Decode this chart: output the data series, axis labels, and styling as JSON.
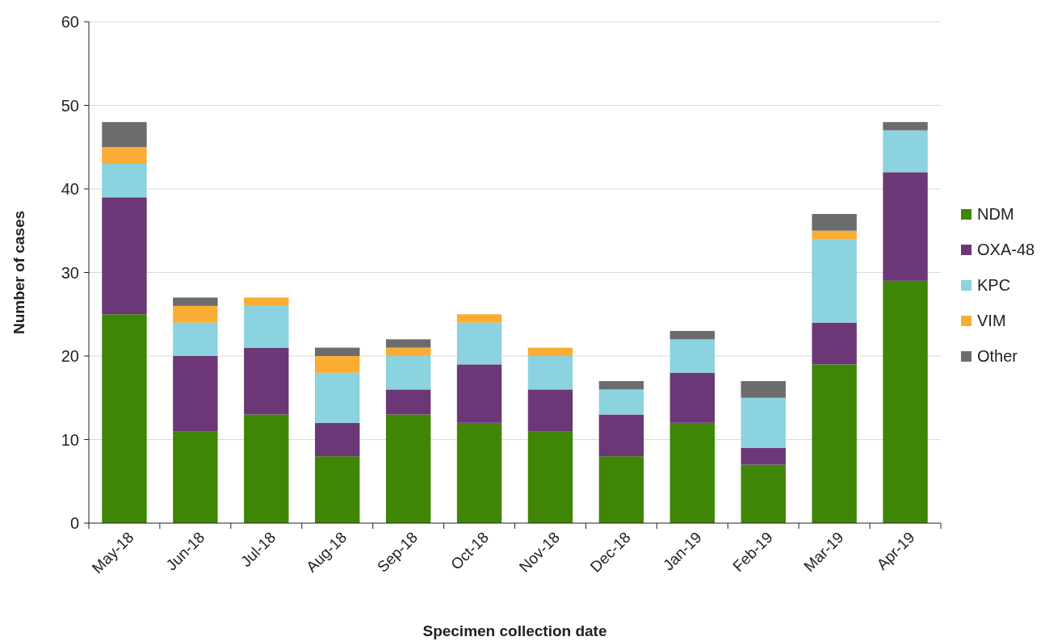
{
  "chart_data": {
    "type": "bar",
    "stacked": true,
    "xlabel": "Specimen collection date",
    "ylabel": "Number of cases",
    "categories": [
      "May-18",
      "Jun-18",
      "Jul-18",
      "Aug-18",
      "Sep-18",
      "Oct-18",
      "Nov-18",
      "Dec-18",
      "Jan-19",
      "Feb-19",
      "Mar-19",
      "Apr-19"
    ],
    "series": [
      {
        "name": "NDM",
        "color": "#3f8506",
        "values": [
          25,
          11,
          13,
          8,
          13,
          12,
          11,
          8,
          12,
          7,
          19,
          29
        ]
      },
      {
        "name": "OXA-48",
        "color": "#6b3776",
        "values": [
          14,
          9,
          8,
          4,
          3,
          7,
          5,
          5,
          6,
          2,
          5,
          13
        ]
      },
      {
        "name": "KPC",
        "color": "#8ad3df",
        "values": [
          4,
          4,
          5,
          6,
          4,
          5,
          4,
          3,
          4,
          6,
          10,
          5
        ]
      },
      {
        "name": "VIM",
        "color": "#fbad33",
        "values": [
          2,
          2,
          1,
          2,
          1,
          1,
          1,
          0,
          0,
          0,
          1,
          0
        ]
      },
      {
        "name": "Other",
        "color": "#6c6c6e",
        "values": [
          3,
          1,
          0,
          1,
          1,
          0,
          0,
          1,
          1,
          2,
          2,
          1
        ]
      }
    ],
    "ylim": [
      0,
      60
    ],
    "yticks": [
      0,
      10,
      20,
      30,
      40,
      50,
      60
    ],
    "grid": "y",
    "legend": "right"
  }
}
